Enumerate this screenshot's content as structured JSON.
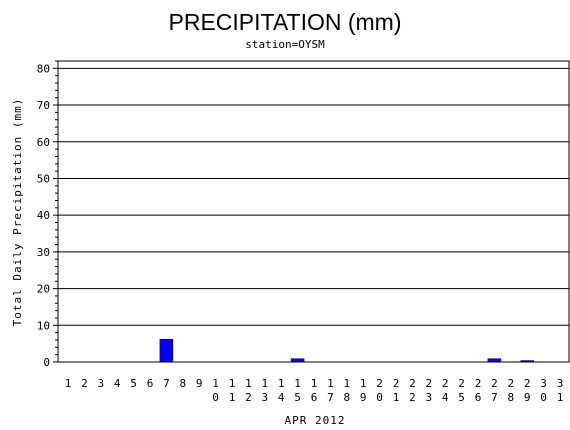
{
  "chart_data": {
    "type": "bar",
    "title": "PRECIPITATION (mm)",
    "subtitle": "station=OYSM",
    "xlabel": "APR 2012",
    "ylabel": "Total Daily Precipitation (mm)",
    "ylim": [
      0,
      82
    ],
    "yticks": [
      0,
      10,
      20,
      30,
      40,
      50,
      60,
      70,
      80
    ],
    "grid": true,
    "categories": [
      "1",
      "2",
      "3",
      "4",
      "5",
      "6",
      "7",
      "8",
      "9",
      "10",
      "11",
      "12",
      "13",
      "14",
      "15",
      "16",
      "17",
      "18",
      "19",
      "20",
      "21",
      "22",
      "23",
      "24",
      "25",
      "26",
      "27",
      "28",
      "29",
      "30",
      "31"
    ],
    "values": [
      0,
      0,
      0,
      0,
      0,
      0,
      6.2,
      0,
      0,
      0,
      0,
      0,
      0,
      0,
      0.9,
      0,
      0,
      0,
      0,
      0,
      0,
      0,
      0,
      0,
      0,
      0,
      0.9,
      0,
      0.4,
      0,
      0
    ],
    "bar_color": "#0000ff"
  }
}
